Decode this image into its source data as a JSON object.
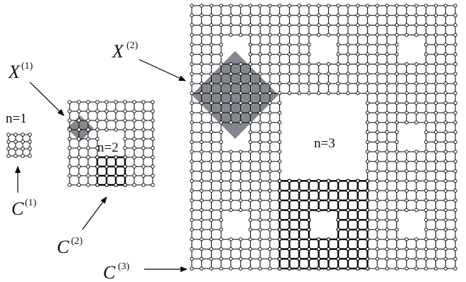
{
  "levels": [
    {
      "n_label": "n=1",
      "cluster_label": "C",
      "cluster_sup": "(1)"
    },
    {
      "n_label": "n=2",
      "cluster_label": "C",
      "cluster_sup": "(2)"
    },
    {
      "n_label": "n=3",
      "cluster_label": "C",
      "cluster_sup": "(3)"
    }
  ],
  "regions": [
    {
      "label": "X",
      "sup": "(1)"
    },
    {
      "label": "X",
      "sup": "(2)"
    }
  ],
  "colors": {
    "edge": "#000000",
    "node_fill": "#ffffff",
    "highlight": "#6e737a"
  },
  "carpet": {
    "base_size": 3,
    "removed_cell": "center",
    "bold_subcarpet": "bottom-row / bottom-center blocks"
  }
}
